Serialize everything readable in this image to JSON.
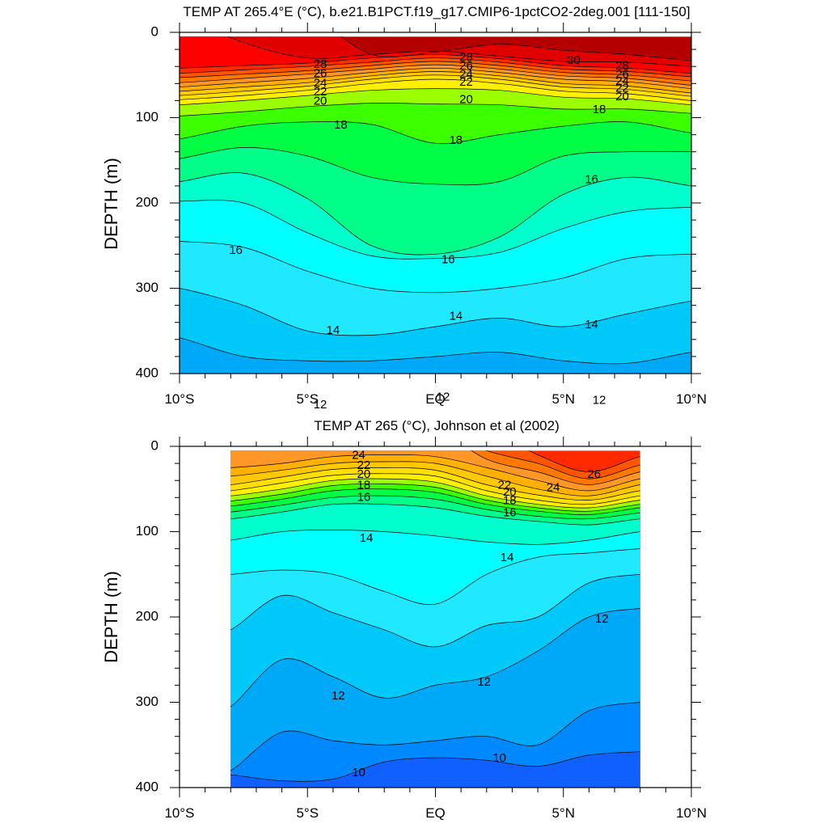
{
  "chart_data": [
    {
      "type": "heatmap",
      "title": "TEMP AT 265.4°E (°C), b.e21.B1PCT.f19_g17.CMIP6-1pctCO2-2deg.001 [111-150]",
      "ylabel": "DEPTH (m)",
      "xlabel": "",
      "xlim": [
        -10,
        10
      ],
      "ylim": [
        400,
        0
      ],
      "x_ticks": [
        {
          "value": -10,
          "label": "10°S"
        },
        {
          "value": -5,
          "label": "5°S"
        },
        {
          "value": 0,
          "label": "EQ"
        },
        {
          "value": 5,
          "label": "5°N"
        },
        {
          "value": 10,
          "label": "10°N"
        }
      ],
      "y_ticks": [
        0,
        100,
        200,
        300,
        400
      ],
      "data_xrange": [
        -10,
        10
      ],
      "surface_depth": 5,
      "x": [
        -10,
        -7.5,
        -5,
        -2.5,
        0,
        2.5,
        5,
        7.5,
        10
      ],
      "isotherms": [
        {
          "level": 30,
          "depth": [
            null,
            null,
            null,
            26,
            23,
            14,
            21,
            26,
            33
          ]
        },
        {
          "level": 29,
          "depth": [
            null,
            12,
            30,
            26,
            22,
            28,
            34,
            35,
            40
          ]
        },
        {
          "level": 28,
          "depth": [
            42,
            39,
            36,
            30,
            26,
            31,
            39,
            42,
            48
          ]
        },
        {
          "level": 27,
          "depth": [
            48,
            44,
            40,
            35,
            30,
            35,
            43,
            46,
            52
          ]
        },
        {
          "level": 26,
          "depth": [
            53,
            49,
            45,
            39,
            34,
            39,
            47,
            50,
            57
          ]
        },
        {
          "level": 25,
          "depth": [
            59,
            54,
            49,
            43,
            38,
            43,
            51,
            54,
            62
          ]
        },
        {
          "level": 24,
          "depth": [
            64,
            59,
            54,
            47,
            42,
            47,
            55,
            58,
            66
          ]
        },
        {
          "level": 23,
          "depth": [
            69,
            64,
            59,
            51,
            46,
            51,
            60,
            63,
            71
          ]
        },
        {
          "level": 22,
          "depth": [
            74,
            69,
            63,
            55,
            50,
            55,
            64,
            67,
            75
          ]
        },
        {
          "level": 21,
          "depth": [
            79,
            74,
            68,
            60,
            55,
            60,
            69,
            72,
            80
          ]
        },
        {
          "level": 20,
          "depth": [
            85,
            80,
            74,
            68,
            66,
            68,
            76,
            78,
            85
          ]
        },
        {
          "level": 19,
          "depth": [
            98,
            93,
            87,
            83,
            84,
            85,
            90,
            90,
            95
          ]
        },
        {
          "level": 18,
          "depth": [
            125,
            110,
            105,
            108,
            130,
            120,
            110,
            105,
            118
          ]
        },
        {
          "level": 17,
          "depth": [
            148,
            135,
            145,
            170,
            178,
            175,
            145,
            140,
            140
          ]
        },
        {
          "level": 16,
          "depth": [
            175,
            165,
            195,
            250,
            260,
            240,
            190,
            170,
            180
          ]
        },
        {
          "level": 15,
          "depth": [
            198,
            200,
            235,
            262,
            265,
            258,
            230,
            210,
            205
          ]
        },
        {
          "level": 14,
          "depth": [
            245,
            252,
            280,
            300,
            305,
            300,
            288,
            265,
            260
          ]
        },
        {
          "level": 13,
          "depth": [
            300,
            320,
            350,
            355,
            345,
            335,
            345,
            330,
            315
          ]
        },
        {
          "level": 12,
          "depth": [
            358,
            380,
            385,
            385,
            380,
            375,
            385,
            388,
            375
          ]
        }
      ],
      "contour_labels": [
        {
          "text": "28",
          "x": -4.5,
          "depth": 38
        },
        {
          "text": "26",
          "x": -4.5,
          "depth": 49
        },
        {
          "text": "24",
          "x": -4.5,
          "depth": 60
        },
        {
          "text": "22",
          "x": -4.5,
          "depth": 70
        },
        {
          "text": "20",
          "x": -4.5,
          "depth": 81
        },
        {
          "text": "28",
          "x": 1.2,
          "depth": 30
        },
        {
          "text": "26",
          "x": 1.2,
          "depth": 40
        },
        {
          "text": "24",
          "x": 1.2,
          "depth": 50
        },
        {
          "text": "22",
          "x": 1.2,
          "depth": 59
        },
        {
          "text": "20",
          "x": 1.2,
          "depth": 79
        },
        {
          "text": "30",
          "x": 5.4,
          "depth": 33
        },
        {
          "text": "28",
          "x": 7.3,
          "depth": 40
        },
        {
          "text": "26",
          "x": 7.3,
          "depth": 50
        },
        {
          "text": "24",
          "x": 7.3,
          "depth": 58
        },
        {
          "text": "22",
          "x": 7.3,
          "depth": 66
        },
        {
          "text": "20",
          "x": 7.3,
          "depth": 76
        },
        {
          "text": "18",
          "x": -3.7,
          "depth": 109
        },
        {
          "text": "18",
          "x": 0.8,
          "depth": 127
        },
        {
          "text": "18",
          "x": 6.4,
          "depth": 91
        },
        {
          "text": "16",
          "x": -7.8,
          "depth": 256
        },
        {
          "text": "16",
          "x": 0.5,
          "depth": 267
        },
        {
          "text": "16",
          "x": 6.1,
          "depth": 173
        },
        {
          "text": "14",
          "x": -4.0,
          "depth": 350
        },
        {
          "text": "14",
          "x": 0.8,
          "depth": 333
        },
        {
          "text": "14",
          "x": 6.1,
          "depth": 343
        },
        {
          "text": "12",
          "x": -4.5,
          "depth": 437
        },
        {
          "text": "12",
          "x": 0.3,
          "depth": 428
        },
        {
          "text": "12",
          "x": 6.4,
          "depth": 432
        }
      ]
    },
    {
      "type": "heatmap",
      "title": "TEMP AT 265 (°C), Johnson et al (2002)",
      "ylabel": "DEPTH (m)",
      "xlabel": "",
      "xlim": [
        -10,
        10
      ],
      "ylim": [
        400,
        0
      ],
      "x_ticks": [
        {
          "value": -10,
          "label": "10°S"
        },
        {
          "value": -5,
          "label": "5°S"
        },
        {
          "value": 0,
          "label": "EQ"
        },
        {
          "value": 5,
          "label": "5°N"
        },
        {
          "value": 10,
          "label": "10°N"
        }
      ],
      "y_ticks": [
        0,
        100,
        200,
        300,
        400
      ],
      "data_xrange": [
        -8,
        8
      ],
      "surface_depth": 5,
      "x": [
        -8,
        -6,
        -4,
        -2,
        0,
        2,
        4,
        6,
        8
      ],
      "isotherms": [
        {
          "level": 27,
          "depth": [
            null,
            null,
            null,
            null,
            null,
            null,
            10,
            30,
            12
          ]
        },
        {
          "level": 26,
          "depth": [
            null,
            null,
            null,
            null,
            null,
            5,
            20,
            38,
            22
          ]
        },
        {
          "level": 25,
          "depth": [
            null,
            null,
            null,
            null,
            null,
            15,
            30,
            45,
            30
          ]
        },
        {
          "level": 24,
          "depth": [
            25,
            20,
            12,
            10,
            12,
            25,
            40,
            52,
            38
          ]
        },
        {
          "level": 23,
          "depth": [
            35,
            28,
            20,
            18,
            20,
            35,
            50,
            58,
            45
          ]
        },
        {
          "level": 22,
          "depth": [
            45,
            36,
            27,
            25,
            28,
            45,
            57,
            63,
            52
          ]
        },
        {
          "level": 21,
          "depth": [
            52,
            43,
            34,
            32,
            35,
            52,
            63,
            68,
            58
          ]
        },
        {
          "level": 20,
          "depth": [
            58,
            50,
            40,
            38,
            42,
            58,
            68,
            72,
            63
          ]
        },
        {
          "level": 19,
          "depth": [
            64,
            56,
            46,
            44,
            48,
            63,
            72,
            76,
            68
          ]
        },
        {
          "level": 18,
          "depth": [
            70,
            62,
            52,
            50,
            54,
            68,
            76,
            80,
            72
          ]
        },
        {
          "level": 17,
          "depth": [
            77,
            69,
            60,
            58,
            62,
            74,
            82,
            85,
            78
          ]
        },
        {
          "level": 16,
          "depth": [
            85,
            77,
            68,
            68,
            72,
            82,
            88,
            92,
            85
          ]
        },
        {
          "level": 15,
          "depth": [
            110,
            100,
            98,
            100,
            105,
            112,
            115,
            110,
            100
          ]
        },
        {
          "level": 14,
          "depth": [
            150,
            145,
            150,
            170,
            185,
            150,
            130,
            125,
            120
          ]
        },
        {
          "level": 13,
          "depth": [
            215,
            175,
            195,
            215,
            235,
            210,
            200,
            160,
            150
          ]
        },
        {
          "level": 12,
          "depth": [
            305,
            250,
            270,
            295,
            280,
            270,
            240,
            200,
            190
          ]
        },
        {
          "level": 11,
          "depth": [
            380,
            335,
            345,
            350,
            345,
            340,
            350,
            310,
            300
          ]
        },
        {
          "level": 10,
          "depth": [
            385,
            392,
            390,
            370,
            365,
            368,
            375,
            362,
            358
          ]
        }
      ],
      "contour_labels": [
        {
          "text": "24",
          "x": -3.0,
          "depth": 11
        },
        {
          "text": "22",
          "x": -2.8,
          "depth": 23
        },
        {
          "text": "20",
          "x": -2.8,
          "depth": 33
        },
        {
          "text": "18",
          "x": -2.8,
          "depth": 46
        },
        {
          "text": "16",
          "x": -2.8,
          "depth": 60
        },
        {
          "text": "22",
          "x": 2.7,
          "depth": 46
        },
        {
          "text": "20",
          "x": 2.9,
          "depth": 54
        },
        {
          "text": "18",
          "x": 2.9,
          "depth": 64
        },
        {
          "text": "16",
          "x": 2.9,
          "depth": 78
        },
        {
          "text": "24",
          "x": 4.6,
          "depth": 49
        },
        {
          "text": "26",
          "x": 6.2,
          "depth": 33
        },
        {
          "text": "14",
          "x": -2.7,
          "depth": 108
        },
        {
          "text": "14",
          "x": 2.8,
          "depth": 131
        },
        {
          "text": "12",
          "x": 6.5,
          "depth": 203
        },
        {
          "text": "12",
          "x": 1.9,
          "depth": 277
        },
        {
          "text": "12",
          "x": -3.8,
          "depth": 293
        },
        {
          "text": "10",
          "x": -3.0,
          "depth": 383
        },
        {
          "text": "10",
          "x": 2.5,
          "depth": 366
        }
      ]
    }
  ],
  "colors": {
    "background": "#ffffff",
    "contour_line": "#000000",
    "colormap": [
      {
        "t": 9,
        "color": "#1060ff"
      },
      {
        "t": 10,
        "color": "#0088ff"
      },
      {
        "t": 11,
        "color": "#00a8f8"
      },
      {
        "t": 12,
        "color": "#00c8f8"
      },
      {
        "t": 13,
        "color": "#20e8ff"
      },
      {
        "t": 14,
        "color": "#00ffff"
      },
      {
        "t": 15,
        "color": "#00ffcc"
      },
      {
        "t": 16,
        "color": "#00ff88"
      },
      {
        "t": 17,
        "color": "#00ff44"
      },
      {
        "t": 18,
        "color": "#3cff00"
      },
      {
        "t": 19,
        "color": "#9cff00"
      },
      {
        "t": 20,
        "color": "#fff000"
      },
      {
        "t": 21,
        "color": "#ffe000"
      },
      {
        "t": 22,
        "color": "#ffc800"
      },
      {
        "t": 23,
        "color": "#ffb000"
      },
      {
        "t": 24,
        "color": "#ff9628"
      },
      {
        "t": 25,
        "color": "#ff7800"
      },
      {
        "t": 26,
        "color": "#ff5500"
      },
      {
        "t": 27,
        "color": "#ff2a00"
      },
      {
        "t": 28,
        "color": "#ff0000"
      },
      {
        "t": 29,
        "color": "#e00000"
      },
      {
        "t": 30,
        "color": "#b40000"
      },
      {
        "t": 31,
        "color": "#900000"
      }
    ]
  }
}
